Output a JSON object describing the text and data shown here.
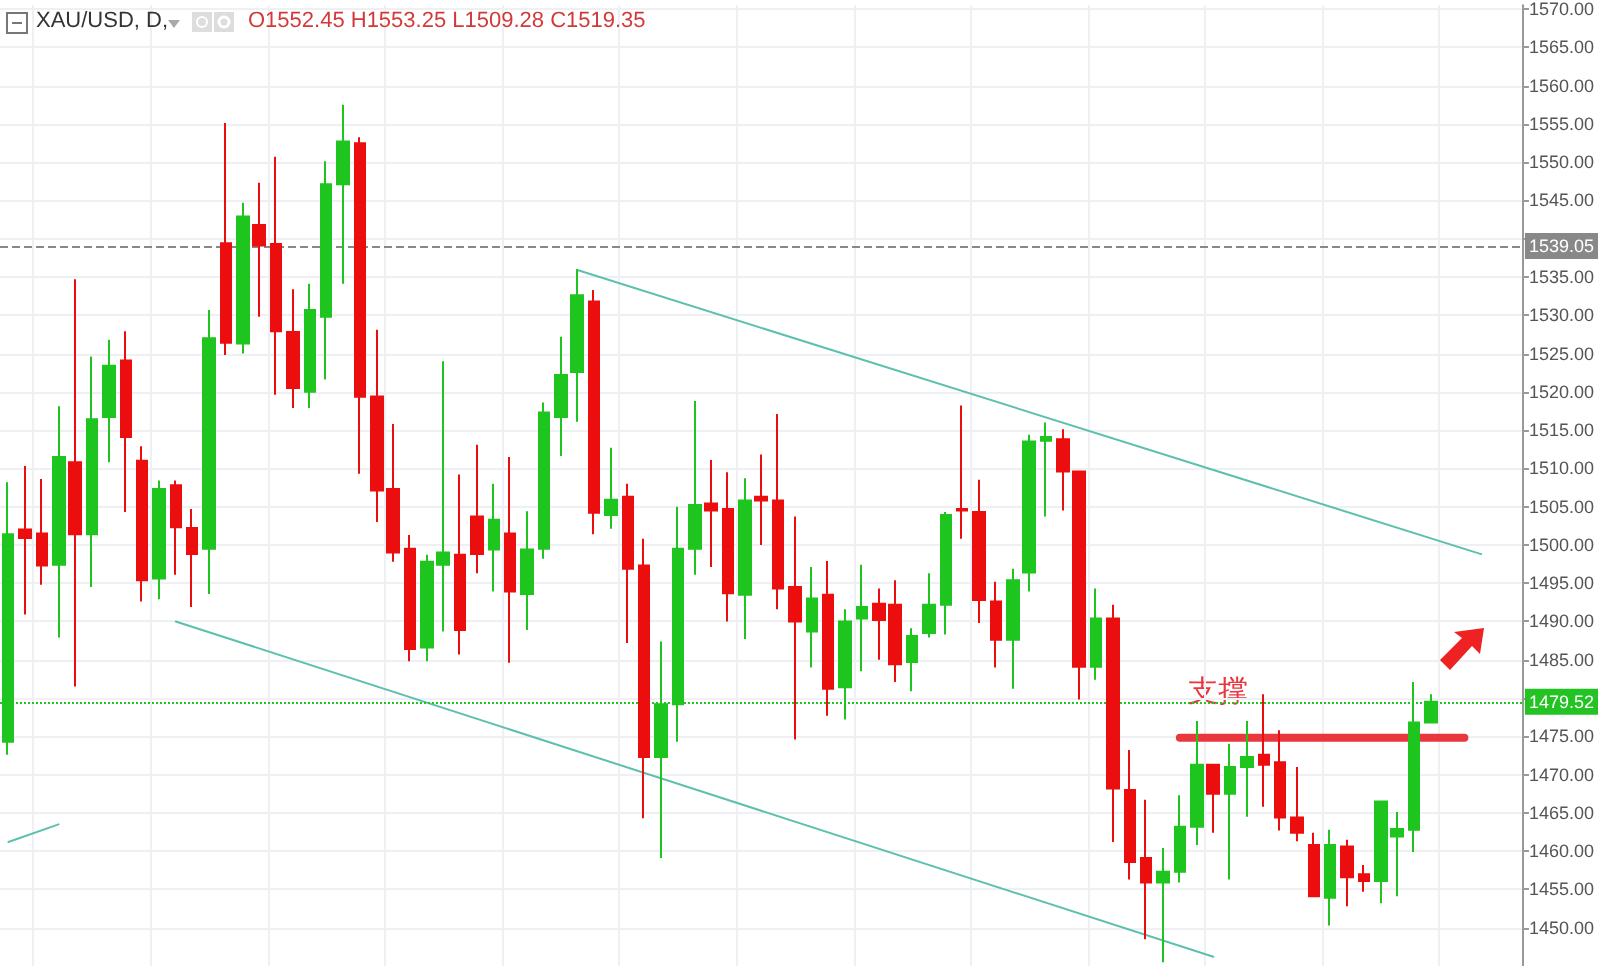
{
  "chart_data": {
    "type": "candlestick",
    "title": "XAU/USD, D,",
    "subtitle": "O1552.45 H1553.25 L1509.28 C1519.35",
    "categories": [
      null,
      null,
      null,
      null,
      null,
      null,
      null,
      null,
      null,
      null,
      null,
      null,
      null,
      null,
      null,
      null,
      null,
      null,
      null,
      null,
      null,
      null,
      null,
      null,
      null,
      null,
      null,
      null,
      null,
      null,
      null,
      null,
      null,
      null,
      null,
      null,
      null,
      null,
      null,
      null,
      null,
      null,
      null,
      null,
      null,
      null,
      null,
      null,
      null,
      null,
      null,
      null,
      null,
      null,
      null,
      null,
      null,
      null,
      null,
      null,
      null,
      null,
      null,
      null,
      null,
      null,
      null,
      null,
      null,
      null,
      null,
      null,
      null,
      null,
      null,
      null,
      null,
      null,
      null,
      null,
      null,
      null,
      null,
      null,
      null,
      null,
      null,
      null,
      null,
      null,
      null
    ],
    "ohlc": [
      [
        1474.3,
        1508.2,
        1472.6,
        1501.4
      ],
      [
        1502.0,
        1510.3,
        1490.9,
        1500.9
      ],
      [
        1501.5,
        1508.6,
        1494.8,
        1497.3
      ],
      [
        1497.4,
        1518.1,
        1487.9,
        1511.5
      ],
      [
        1510.8,
        1534.7,
        1481.5,
        1501.4
      ],
      [
        1501.4,
        1524.6,
        1494.5,
        1516.4
      ],
      [
        1516.7,
        1526.8,
        1510.8,
        1523.4
      ],
      [
        1524.1,
        1527.9,
        1504.3,
        1514.1
      ],
      [
        1511.0,
        1512.9,
        1492.6,
        1495.4
      ],
      [
        1495.6,
        1508.4,
        1492.9,
        1507.3
      ],
      [
        1507.8,
        1508.4,
        1496.1,
        1502.3
      ],
      [
        1502.2,
        1504.7,
        1491.9,
        1498.8
      ],
      [
        1499.5,
        1530.7,
        1493.6,
        1527.0
      ],
      [
        1539.4,
        1555.1,
        1524.8,
        1526.4
      ],
      [
        1526.3,
        1544.7,
        1525.0,
        1542.9
      ],
      [
        1541.8,
        1547.3,
        1529.8,
        1539.1
      ],
      [
        1539.3,
        1550.7,
        1519.6,
        1527.9
      ],
      [
        1527.8,
        1533.4,
        1517.9,
        1520.5
      ],
      [
        1520.0,
        1534.1,
        1517.9,
        1530.7
      ],
      [
        1529.8,
        1550.1,
        1521.6,
        1547.1
      ],
      [
        1547.1,
        1557.5,
        1534.1,
        1552.7
      ],
      [
        1552.45,
        1553.25,
        1509.28,
        1519.35
      ],
      [
        1519.4,
        1528.1,
        1503.0,
        1507.1
      ],
      [
        1507.3,
        1515.8,
        1497.8,
        1499.0
      ],
      [
        1499.5,
        1501.3,
        1484.8,
        1486.4
      ],
      [
        1486.6,
        1498.7,
        1484.8,
        1497.8
      ],
      [
        1497.4,
        1524.0,
        1488.7,
        1499.0
      ],
      [
        1498.7,
        1509.2,
        1485.7,
        1488.9
      ],
      [
        1503.7,
        1513.1,
        1496.3,
        1498.8
      ],
      [
        1499.4,
        1508.0,
        1493.9,
        1503.3
      ],
      [
        1501.5,
        1511.5,
        1484.6,
        1493.9
      ],
      [
        1493.6,
        1504.4,
        1488.9,
        1499.4
      ],
      [
        1499.5,
        1518.6,
        1498.2,
        1517.3
      ],
      [
        1516.7,
        1527.2,
        1511.6,
        1522.2
      ],
      [
        1522.6,
        1536.0,
        1516.1,
        1532.6
      ],
      [
        1531.8,
        1533.3,
        1501.4,
        1504.2
      ],
      [
        1503.9,
        1512.7,
        1502.1,
        1505.9
      ],
      [
        1506.3,
        1508.0,
        1487.2,
        1496.9
      ],
      [
        1497.3,
        1500.8,
        1464.3,
        1472.3
      ],
      [
        1472.3,
        1487.4,
        1459.1,
        1479.2
      ],
      [
        1479.2,
        1505.0,
        1474.3,
        1499.5
      ],
      [
        1499.5,
        1518.8,
        1496.1,
        1505.2
      ],
      [
        1505.4,
        1511.1,
        1497.1,
        1504.5
      ],
      [
        1504.7,
        1509.5,
        1490.0,
        1493.7
      ],
      [
        1493.5,
        1508.7,
        1487.7,
        1505.8
      ],
      [
        1506.3,
        1511.8,
        1500.0,
        1505.8
      ],
      [
        1505.8,
        1517.1,
        1491.6,
        1494.3
      ],
      [
        1494.5,
        1503.7,
        1474.6,
        1490.0
      ],
      [
        1488.7,
        1497.1,
        1484.0,
        1493.0
      ],
      [
        1493.5,
        1497.9,
        1477.7,
        1481.2
      ],
      [
        1481.4,
        1491.6,
        1477.2,
        1490.0
      ],
      [
        1490.4,
        1497.4,
        1483.5,
        1491.9
      ],
      [
        1492.3,
        1494.3,
        1485.0,
        1490.2
      ],
      [
        1492.2,
        1495.4,
        1482.1,
        1484.4
      ],
      [
        1484.7,
        1489.1,
        1480.9,
        1488.1
      ],
      [
        1488.5,
        1496.3,
        1487.9,
        1492.2
      ],
      [
        1492.2,
        1504.3,
        1488.3,
        1503.9
      ],
      [
        1504.7,
        1518.2,
        1500.8,
        1504.5
      ],
      [
        1504.3,
        1508.5,
        1489.8,
        1492.8
      ],
      [
        1492.6,
        1495.2,
        1484.0,
        1487.6
      ],
      [
        1487.6,
        1496.9,
        1481.2,
        1495.4
      ],
      [
        1496.4,
        1514.4,
        1493.9,
        1513.5
      ],
      [
        1513.6,
        1516.0,
        1503.7,
        1514.1
      ],
      [
        1513.8,
        1515.1,
        1504.5,
        1509.6
      ],
      [
        1509.6,
        1509.6,
        1479.8,
        1484.1
      ],
      [
        1484.1,
        1494.3,
        1482.4,
        1490.4
      ],
      [
        1490.4,
        1492.2,
        1461.2,
        1468.2
      ],
      [
        1468.0,
        1473.2,
        1456.3,
        1458.6
      ],
      [
        1459.1,
        1466.7,
        1448.5,
        1455.9
      ],
      [
        1455.9,
        1460.4,
        1445.5,
        1457.3
      ],
      [
        1457.3,
        1467.3,
        1455.9,
        1463.2
      ],
      [
        1463.2,
        1477.0,
        1460.8,
        1471.3
      ],
      [
        1471.3,
        1471.3,
        1462.4,
        1467.5
      ],
      [
        1467.5,
        1474.0,
        1456.3,
        1471.0
      ],
      [
        1471.0,
        1477.0,
        1464.5,
        1472.3
      ],
      [
        1472.6,
        1480.5,
        1465.8,
        1471.3
      ],
      [
        1471.6,
        1475.8,
        1462.7,
        1464.4
      ],
      [
        1464.4,
        1471.0,
        1461.3,
        1462.4
      ],
      [
        1460.8,
        1462.4,
        1454.1,
        1454.1
      ],
      [
        1453.9,
        1462.8,
        1450.3,
        1460.8
      ],
      [
        1460.6,
        1461.5,
        1452.8,
        1456.6
      ],
      [
        1457.0,
        1458.2,
        1454.7,
        1456.1
      ],
      [
        1456.1,
        1466.5,
        1453.2,
        1466.5
      ],
      [
        1461.9,
        1465.1,
        1454.1,
        1462.9
      ],
      [
        1462.8,
        1482.1,
        1459.9,
        1476.8
      ],
      [
        1476.8,
        1480.5,
        1476.8,
        1479.5
      ],
      null,
      null,
      null,
      null,
      null
    ],
    "colors": [
      "#1fc51f",
      "#ec0e0e",
      "#ec0e0e",
      "#1fc51f",
      "#ec0e0e",
      "#1fc51f",
      "#1fc51f",
      "#ec0e0e",
      "#ec0e0e",
      "#1fc51f",
      "#ec0e0e",
      "#ec0e0e",
      "#1fc51f",
      "#ec0e0e",
      "#1fc51f",
      "#ec0e0e",
      "#ec0e0e",
      "#ec0e0e",
      "#1fc51f",
      "#1fc51f",
      "#1fc51f",
      "#ec0e0e",
      "#ec0e0e",
      "#ec0e0e",
      "#ec0e0e",
      "#1fc51f",
      "#1fc51f",
      "#ec0e0e",
      "#ec0e0e",
      "#1fc51f",
      "#ec0e0e",
      "#1fc51f",
      "#1fc51f",
      "#1fc51f",
      "#1fc51f",
      "#ec0e0e",
      "#1fc51f",
      "#ec0e0e",
      "#ec0e0e",
      "#1fc51f",
      "#1fc51f",
      "#1fc51f",
      "#ec0e0e",
      "#ec0e0e",
      "#1fc51f",
      "#ec0e0e",
      "#ec0e0e",
      "#ec0e0e",
      "#1fc51f",
      "#ec0e0e",
      "#1fc51f",
      "#1fc51f",
      "#ec0e0e",
      "#ec0e0e",
      "#1fc51f",
      "#1fc51f",
      "#1fc51f",
      "#ec0e0e",
      "#ec0e0e",
      "#ec0e0e",
      "#1fc51f",
      "#1fc51f",
      "#1fc51f",
      "#ec0e0e",
      "#ec0e0e",
      "#1fc51f",
      "#ec0e0e",
      "#ec0e0e",
      "#ec0e0e",
      "#1fc51f",
      "#1fc51f",
      "#1fc51f",
      "#ec0e0e",
      "#1fc51f",
      "#1fc51f",
      "#ec0e0e",
      "#ec0e0e",
      "#ec0e0e",
      "#ec0e0e",
      "#1fc51f",
      "#ec0e0e",
      "#ec0e0e",
      "#1fc51f",
      "#1fc51f",
      "#1fc51f",
      "#1fc51f",
      null,
      null,
      null,
      null,
      null
    ],
    "series": [
      {
        "type": "line",
        "color": "#5dbfae",
        "values": [
          null,
          null,
          null,
          null,
          null,
          null,
          null,
          null,
          null,
          null,
          null,
          null,
          null,
          null,
          null,
          null,
          null,
          null,
          null,
          null,
          null,
          null,
          null,
          null,
          null,
          null,
          null,
          null,
          null,
          null,
          null,
          null,
          null,
          null,
          1535.9,
          null,
          null,
          null,
          null,
          null,
          null,
          null,
          null,
          null,
          null,
          null,
          null,
          null,
          null,
          null,
          null,
          null,
          null,
          null,
          null,
          null,
          null,
          null,
          null,
          null,
          null,
          null,
          null,
          null,
          null,
          null,
          null,
          null,
          null,
          null,
          null,
          null,
          null,
          null,
          null,
          null,
          null,
          null,
          null,
          null,
          null,
          null,
          null,
          null,
          null,
          null,
          null,
          null,
          1498.8,
          null,
          null
        ]
      },
      {
        "type": "line",
        "color": "#5dbfae",
        "values": [
          null,
          null,
          null,
          null,
          null,
          null,
          null,
          null,
          null,
          null,
          1490.0,
          null,
          null,
          null,
          null,
          null,
          null,
          null,
          null,
          null,
          null,
          null,
          null,
          null,
          null,
          null,
          null,
          null,
          null,
          null,
          null,
          null,
          null,
          null,
          null,
          null,
          null,
          null,
          null,
          null,
          null,
          null,
          null,
          null,
          null,
          null,
          null,
          null,
          null,
          null,
          null,
          null,
          null,
          null,
          null,
          null,
          null,
          null,
          null,
          null,
          null,
          null,
          null,
          null,
          null,
          null,
          null,
          null,
          null,
          null,
          null,
          null,
          1446.2,
          null,
          null,
          null,
          null,
          null,
          null,
          null,
          null,
          null,
          null,
          null,
          null,
          null,
          null,
          null,
          null,
          null,
          null
        ]
      },
      {
        "type": "line",
        "color": "#5dbfae",
        "values": [
          1461.2,
          null,
          null,
          1463.5,
          null,
          null,
          null,
          null,
          null,
          null,
          null,
          null,
          null,
          null,
          null,
          null,
          null,
          null,
          null,
          null,
          null,
          null,
          null,
          null,
          null,
          null,
          null,
          null,
          null,
          null,
          null,
          null,
          null,
          null,
          null,
          null,
          null,
          null,
          null,
          null,
          null,
          null,
          null,
          null,
          null,
          null,
          null,
          null,
          null,
          null,
          null,
          null,
          null,
          null,
          null,
          null,
          null,
          null,
          null,
          null,
          null,
          null,
          null,
          null,
          null,
          null,
          null,
          null,
          null,
          null,
          null,
          null,
          null,
          null,
          null,
          null,
          null,
          null,
          null,
          null,
          null,
          null,
          null,
          null,
          null,
          null,
          null,
          null,
          null,
          null,
          null
        ]
      },
      {
        "type": "line",
        "color": "#e8383d",
        "values": [
          null,
          null,
          null,
          null,
          null,
          null,
          null,
          null,
          null,
          null,
          null,
          null,
          null,
          null,
          null,
          null,
          null,
          null,
          null,
          null,
          null,
          null,
          null,
          null,
          null,
          null,
          null,
          null,
          null,
          null,
          null,
          null,
          null,
          null,
          null,
          null,
          null,
          null,
          null,
          null,
          null,
          null,
          null,
          null,
          null,
          null,
          null,
          null,
          null,
          null,
          null,
          null,
          null,
          null,
          null,
          null,
          null,
          null,
          null,
          null,
          null,
          null,
          null,
          null,
          null,
          null,
          null,
          null,
          null,
          null,
          1474.8,
          null,
          null,
          null,
          null,
          null,
          null,
          null,
          null,
          null,
          null,
          null,
          null,
          null,
          null,
          null,
          null,
          1474.8,
          null,
          null,
          null
        ]
      }
    ],
    "ylim": [
      1445,
      1570.5
    ],
    "yticks": [
      {
        "value": 1450,
        "label": "1450.00"
      },
      {
        "value": 1455,
        "label": "1455.00"
      },
      {
        "value": 1460,
        "label": "1460.00"
      },
      {
        "value": 1465,
        "label": "1465.00"
      },
      {
        "value": 1470,
        "label": "1470.00"
      },
      {
        "value": 1475,
        "label": "1475.00"
      },
      {
        "value": 1480,
        "label": null
      },
      {
        "value": 1485,
        "label": "1485.00"
      },
      {
        "value": 1490,
        "label": "1490.00"
      },
      {
        "value": 1495,
        "label": "1495.00"
      },
      {
        "value": 1500,
        "label": "1500.00"
      },
      {
        "value": 1505,
        "label": "1505.00"
      },
      {
        "value": 1510,
        "label": "1510.00"
      },
      {
        "value": 1515,
        "label": "1515.00"
      },
      {
        "value": 1520,
        "label": "1520.00"
      },
      {
        "value": 1525,
        "label": "1525.00"
      },
      {
        "value": 1530,
        "label": "1530.00"
      },
      {
        "value": 1535,
        "label": "1535.00"
      },
      {
        "value": 1540,
        "label": null
      },
      {
        "value": 1545,
        "label": "1545.00"
      },
      {
        "value": 1550,
        "label": "1550.00"
      },
      {
        "value": 1555,
        "label": "1555.00"
      },
      {
        "value": 1560,
        "label": "1560.00"
      },
      {
        "value": 1565,
        "label": "1565.00"
      },
      {
        "value": 1570,
        "label": "1570.00"
      }
    ],
    "ref_lines": [
      {
        "axis": "y",
        "value": 1539.05,
        "label": "1539.05",
        "color": "#888888",
        "line_style": "dashed"
      },
      {
        "axis": "y",
        "value": 1479.52,
        "label": "1479.52",
        "color": "#22c322",
        "line_style": "dotted"
      }
    ],
    "annotations": [
      "支撑"
    ],
    "tick_labels": "y",
    "grid": true,
    "line_style": "solid"
  }
}
